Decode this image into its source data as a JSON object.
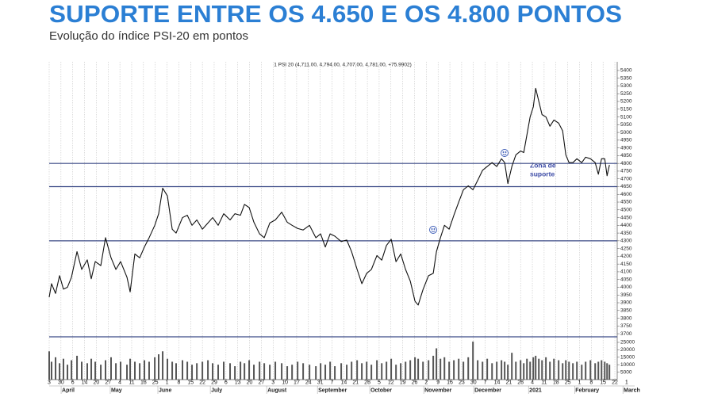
{
  "chart_data": {
    "type": "line",
    "title": "SUPORTE ENTRE OS 4.650 E OS 4.800 PONTOS",
    "subtitle": "Evolução do índice PSI-20 em pontos",
    "header": "1 PSI 20 (4,711.00, 4,794.00, 4,707.00, 4,781.00, +75.9902)",
    "annotation": [
      "Zona de",
      "suporte"
    ],
    "color": "#111111",
    "hline_color": "#3b4a86",
    "grid": true,
    "x": [
      0,
      0.2,
      0.54,
      0.88,
      1.21,
      1.55,
      1.89,
      2.36,
      2.76,
      3.23,
      3.57,
      3.91,
      4.38,
      4.78,
      5.25,
      5.66,
      6.06,
      6.6,
      6.87,
      7.27,
      7.68,
      8.08,
      8.48,
      8.96,
      9.29,
      9.63,
      10.03,
      10.44,
      10.77,
      11.31,
      11.72,
      12.12,
      12.53,
      13,
      13.47,
      13.87,
      14.34,
      14.81,
      15.35,
      15.76,
      16.23,
      16.57,
      16.97,
      17.37,
      17.85,
      18.25,
      18.72,
      19.19,
      19.73,
      20.2,
      20.61,
      21.08,
      21.55,
      22.09,
      22.63,
      23.03,
      23.43,
      23.84,
      24.24,
      24.78,
      25.25,
      25.66,
      26.13,
      26.53,
      26.94,
      27.34,
      27.81,
      28.22,
      28.62,
      29.02,
      29.43,
      29.83,
      30.24,
      30.64,
      31.04,
      31.31,
      31.72,
      32.19,
      32.59,
      32.86,
      33.2,
      33.54,
      33.94,
      34.34,
      34.75,
      35.15,
      35.56,
      35.96,
      36.36,
      36.77,
      37.17,
      37.58,
      37.98,
      38.38,
      38.65,
      38.92,
      39.26,
      39.6,
      40,
      40.27,
      40.54,
      40.81,
      41.08,
      41.28,
      41.55,
      41.82,
      42.15,
      42.49,
      42.83,
      43.23,
      43.57,
      43.84,
      44.11,
      44.44,
      44.78,
      45.19,
      45.52,
      45.93,
      46.33,
      46.6,
      46.87,
      47.14,
      47.34,
      47.54
    ],
    "values": [
      3936,
      4023,
      3960,
      4075,
      3988,
      4000,
      4065,
      4230,
      4115,
      4177,
      4055,
      4166,
      4140,
      4320,
      4190,
      4115,
      4166,
      4065,
      3970,
      4215,
      4190,
      4260,
      4320,
      4400,
      4475,
      4640,
      4590,
      4375,
      4350,
      4450,
      4465,
      4400,
      4435,
      4375,
      4415,
      4450,
      4400,
      4475,
      4435,
      4475,
      4465,
      4535,
      4515,
      4420,
      4345,
      4320,
      4415,
      4435,
      4485,
      4420,
      4400,
      4380,
      4370,
      4400,
      4320,
      4345,
      4260,
      4345,
      4330,
      4295,
      4305,
      4230,
      4115,
      4023,
      4090,
      4115,
      4205,
      4175,
      4270,
      4310,
      4165,
      4215,
      4115,
      4040,
      3910,
      3885,
      3985,
      4075,
      4090,
      4230,
      4320,
      4400,
      4375,
      4465,
      4550,
      4630,
      4655,
      4630,
      4690,
      4755,
      4780,
      4805,
      4780,
      4830,
      4805,
      4670,
      4780,
      4855,
      4880,
      4870,
      4985,
      5100,
      5165,
      5285,
      5200,
      5115,
      5100,
      5040,
      5080,
      5060,
      5010,
      4855,
      4805,
      4805,
      4830,
      4805,
      4840,
      4830,
      4805,
      4730,
      4830,
      4830,
      4720,
      4790
    ],
    "xlim": [
      0,
      48.2
    ],
    "xticks": [
      {
        "value": 0,
        "label": "3"
      },
      {
        "value": 1,
        "label": "30"
      },
      {
        "value": 2,
        "label": "6"
      },
      {
        "value": 3,
        "label": "14"
      },
      {
        "value": 4,
        "label": "20"
      },
      {
        "value": 5,
        "label": "27"
      },
      {
        "value": 6,
        "label": "4"
      },
      {
        "value": 7,
        "label": "11"
      },
      {
        "value": 8,
        "label": "18"
      },
      {
        "value": 9,
        "label": "25"
      },
      {
        "value": 10,
        "label": "1"
      },
      {
        "value": 11,
        "label": "8"
      },
      {
        "value": 12,
        "label": "15"
      },
      {
        "value": 13,
        "label": "22"
      },
      {
        "value": 14,
        "label": "29"
      },
      {
        "value": 15,
        "label": "6"
      },
      {
        "value": 16,
        "label": "13"
      },
      {
        "value": 17,
        "label": "20"
      },
      {
        "value": 18,
        "label": "27"
      },
      {
        "value": 19,
        "label": "3"
      },
      {
        "value": 20,
        "label": "10"
      },
      {
        "value": 21,
        "label": "17"
      },
      {
        "value": 22,
        "label": "24"
      },
      {
        "value": 23,
        "label": "31"
      },
      {
        "value": 24,
        "label": "7"
      },
      {
        "value": 25,
        "label": "14"
      },
      {
        "value": 26,
        "label": "21"
      },
      {
        "value": 27,
        "label": "28"
      },
      {
        "value": 28,
        "label": "5"
      },
      {
        "value": 29,
        "label": "12"
      },
      {
        "value": 30,
        "label": "19"
      },
      {
        "value": 31,
        "label": "26"
      },
      {
        "value": 32,
        "label": "2"
      },
      {
        "value": 33,
        "label": "9"
      },
      {
        "value": 34,
        "label": "16"
      },
      {
        "value": 35,
        "label": "23"
      },
      {
        "value": 36,
        "label": "30"
      },
      {
        "value": 37,
        "label": "7"
      },
      {
        "value": 38,
        "label": "14"
      },
      {
        "value": 39,
        "label": "21"
      },
      {
        "value": 40,
        "label": "28"
      },
      {
        "value": 41,
        "label": "4"
      },
      {
        "value": 42,
        "label": "11"
      },
      {
        "value": 43,
        "label": "18"
      },
      {
        "value": 44,
        "label": "25"
      },
      {
        "value": 45,
        "label": "1"
      },
      {
        "value": 46,
        "label": "8"
      },
      {
        "value": 47,
        "label": "15"
      },
      {
        "value": 48,
        "label": "22"
      },
      {
        "value": 49,
        "label": "1"
      }
    ],
    "month_ticks": [
      {
        "value": 1.08,
        "label": "April"
      },
      {
        "value": 5.25,
        "label": "May"
      },
      {
        "value": 9.29,
        "label": "June"
      },
      {
        "value": 13.74,
        "label": "July"
      },
      {
        "value": 18.52,
        "label": "August"
      },
      {
        "value": 22.83,
        "label": "September"
      },
      {
        "value": 27.27,
        "label": "October"
      },
      {
        "value": 31.85,
        "label": "November"
      },
      {
        "value": 36.09,
        "label": "December"
      },
      {
        "value": 40.74,
        "label": "2021"
      },
      {
        "value": 44.65,
        "label": "February"
      },
      {
        "value": 48.75,
        "label": "March"
      }
    ],
    "ylim": [
      3680,
      5456
    ],
    "yticks": [
      3700,
      3750,
      3800,
      3850,
      3900,
      3950,
      4000,
      4050,
      4100,
      4150,
      4200,
      4250,
      4300,
      4350,
      4400,
      4450,
      4500,
      4550,
      4600,
      4650,
      4700,
      4750,
      4800,
      4850,
      4900,
      4950,
      5000,
      5050,
      5100,
      5150,
      5200,
      5250,
      5300,
      5350,
      5400
    ],
    "hlines": [
      4800,
      4650,
      4300
    ],
    "volume": {
      "type": "bar",
      "color": "#555555",
      "values": [
        19000,
        12000,
        15000,
        11000,
        14000,
        10000,
        13000,
        16000,
        12000,
        11000,
        14000,
        12000,
        10000,
        13000,
        15000,
        11000,
        12000,
        10000,
        14000,
        12000,
        11000,
        13000,
        12000,
        15000,
        17000,
        19000,
        14000,
        12000,
        11000,
        13000,
        12000,
        10000,
        11000,
        12000,
        13000,
        11000,
        10000,
        12000,
        11000,
        9000,
        12000,
        11000,
        13000,
        10000,
        12000,
        11000,
        10000,
        12000,
        11000,
        9000,
        10000,
        12000,
        11000,
        10000,
        9000,
        11000,
        10000,
        12000,
        9000,
        11000,
        10000,
        12000,
        13000,
        11000,
        12000,
        10000,
        13000,
        11000,
        12000,
        14000,
        10000,
        11000,
        12000,
        13000,
        15000,
        14000,
        12000,
        13000,
        16000,
        21000,
        14000,
        15000,
        12000,
        13000,
        14000,
        12000,
        15000,
        25500,
        13000,
        12000,
        14000,
        11000,
        12000,
        13000,
        12000,
        10000,
        18000,
        12000,
        13000,
        11000,
        14000,
        12000,
        15000,
        16000,
        14000,
        13000,
        15000,
        12000,
        14000,
        13000,
        11000,
        13000,
        12000,
        11000,
        12000,
        10000,
        12000,
        13000,
        11000,
        12000,
        13000,
        12000,
        11000,
        10000
      ],
      "ylim": [
        0,
        26600
      ],
      "yticks": [
        5000,
        10000,
        15000,
        20000,
        25000
      ]
    }
  }
}
